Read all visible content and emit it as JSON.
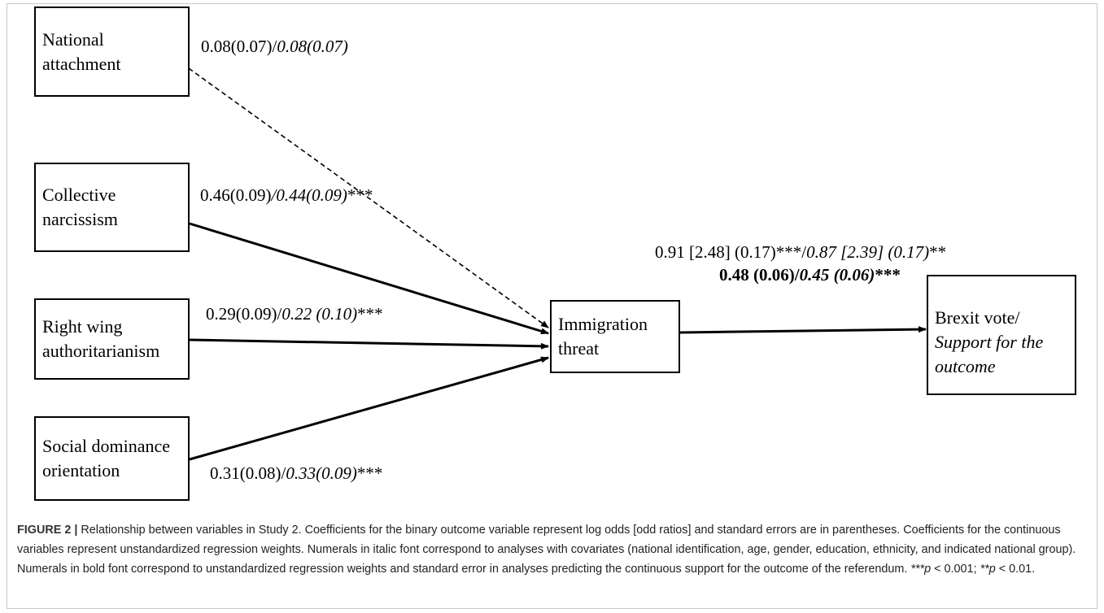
{
  "nodes": {
    "national_attachment": "National\nattachment",
    "collective_narcissism": "Collective\nnarcissism",
    "right_wing": "Right wing\nauthoritarianism",
    "social_dominance": "Social dominance\norientation",
    "immigration_threat": "Immigration\nthreat",
    "brexit_line1": "Brexit vote/",
    "brexit_line2": "Support for the\noutcome"
  },
  "edges": {
    "national": {
      "plain": "0.08(0.07)/",
      "italic": "0.08(0.07)",
      "sig": ""
    },
    "collective": {
      "plain": "0.46(0.09)",
      "italic": "/0.44(0.09)",
      "sig": "***"
    },
    "right_wing": {
      "plain": "0.29(0.09)/",
      "italic": "0.22 (0.10)",
      "sig": "***"
    },
    "social": {
      "plain": "0.31(0.08)/",
      "italic": "0.33(0.09)",
      "sig": "***"
    },
    "threat_brexit": {
      "line1_plain": "0.91 [2.48] (0.17)***/",
      "line1_italic": "0.87 [2.39] (0.17)",
      "line1_sig": "**",
      "line2_bold": "0.48 (0.06)/",
      "line2_bold_italic": "0.45 (0.06)",
      "line2_sig": "***"
    }
  },
  "caption": {
    "lead": "FIGURE 2 |",
    "text": " Relationship between variables in Study 2. Coefficients for the binary outcome variable represent log odds [odd ratios] and standard errors are in parentheses. Coefficients for the continuous variables represent unstandardized regression weights. Numerals in italic font correspond to analyses with covariates (national identification, age, gender, education, ethnicity, and indicated national group). Numerals in bold font correspond to unstandardized regression weights and standard error in analyses predicting the continuous support for the outcome of the referendum. ",
    "p1": "***p",
    "p1_rest": " < 0.001; ",
    "p2": "**p",
    "p2_rest": " < 0.01."
  }
}
